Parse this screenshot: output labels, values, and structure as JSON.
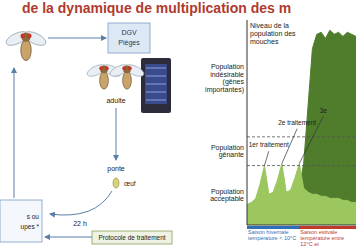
{
  "title": "de la dynamique de multiplication des m",
  "diagram": {
    "trap": [
      "DGV",
      "Pièges"
    ],
    "adult": "adulte",
    "laying": "ponte",
    "egg": "œuf",
    "duration": "22 h",
    "protocol": "Protocole de traitement",
    "side_box": [
      "s ou",
      "upes *"
    ]
  },
  "chart_data": {
    "type": "area",
    "y_label": [
      "Niveau de la",
      "population des",
      "mouches"
    ],
    "x": [
      0,
      0.4,
      0.8,
      1.2,
      1.6,
      2.0,
      2.4,
      2.8,
      3.2,
      3.6,
      4.0,
      4.4,
      4.8,
      5.2,
      5.6,
      6.0,
      6.4,
      6.8,
      7.2,
      7.6,
      8.0,
      8.4,
      8.8,
      9.2,
      9.6,
      10
    ],
    "series": [
      {
        "color": "#4f7d2c",
        "values": [
          null,
          null,
          null,
          null,
          null,
          null,
          null,
          null,
          null,
          null,
          null,
          null,
          1.8,
          3.0,
          5.8,
          8.6,
          9.3,
          9.4,
          9.1,
          9.5,
          9.3,
          9.4,
          9.2,
          9.4,
          9.3,
          9.2
        ]
      },
      {
        "color": "#9cc65e",
        "values": [
          1.0,
          1.1,
          1.3,
          2.0,
          2.9,
          1.5,
          1.6,
          2.2,
          3.0,
          1.6,
          1.7,
          2.3,
          3.0,
          1.8,
          1.6,
          1.5,
          1.5,
          1.4,
          1.4,
          1.3,
          1.3,
          1.3,
          1.2,
          1.2,
          1.1,
          1.1
        ]
      }
    ],
    "xlim": [
      0,
      10
    ],
    "ylim": [
      0,
      10
    ],
    "tick_labels": false,
    "levels": [
      {
        "label": [
          "Population",
          "acceptable"
        ],
        "from": 0,
        "to": 2.9
      },
      {
        "label": [
          "Population",
          "gênante"
        ],
        "from": 2.9,
        "to": 4.3
      },
      {
        "label": [
          "Population",
          "indésirable",
          "(gênes",
          "importantes)"
        ],
        "from": 4.3,
        "to": 10
      }
    ],
    "annotations": [
      {
        "text": "1er traitement",
        "x": 2.0,
        "y": 3.9,
        "point": [
          1.6,
          2.9
        ]
      },
      {
        "text": "2e traitement",
        "x": 4.6,
        "y": 5.0,
        "point": [
          3.2,
          3.0
        ]
      },
      {
        "text": "3e",
        "x": 7.0,
        "y": 5.6,
        "point": [
          4.8,
          3.0
        ]
      }
    ],
    "seasons": [
      {
        "label": "Saison hivernale température < 10°C",
        "from": 0,
        "to": 4.8,
        "color": "#2e6fb5"
      },
      {
        "label": "Saison estivale température entre 12°C et",
        "from": 4.8,
        "to": 10,
        "color": "#c0392b"
      }
    ]
  }
}
